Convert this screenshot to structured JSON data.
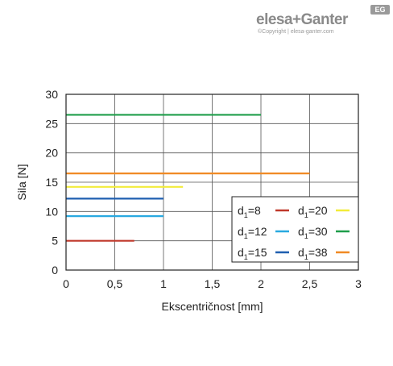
{
  "logo": {
    "brand": "elesa+Ganter",
    "badge": "EG",
    "copyright": "©Copyright | elesa-ganter.com"
  },
  "chart_data": {
    "type": "line",
    "title": "",
    "xlabel": "Ekscentričnost [mm]",
    "ylabel": "Sila [N]",
    "xlim": [
      0,
      3
    ],
    "ylim": [
      0,
      30
    ],
    "xticks": [
      0,
      0.5,
      1,
      1.5,
      2,
      2.5,
      3
    ],
    "xtick_labels": [
      "0",
      "0,5",
      "1",
      "1,5",
      "2",
      "2,5",
      "3"
    ],
    "yticks": [
      0,
      5,
      10,
      15,
      20,
      25,
      30
    ],
    "ytick_labels": [
      "0",
      "5",
      "10",
      "15",
      "20",
      "25",
      "30"
    ],
    "grid": true,
    "legend_position": "bottom-right",
    "series": [
      {
        "name_main": "d",
        "name_sub": "1",
        "name_value": "=8",
        "color": "#c0392b",
        "x": [
          0,
          0.7
        ],
        "y": [
          5,
          5
        ]
      },
      {
        "name_main": "d",
        "name_sub": "1",
        "name_value": "=12",
        "color": "#29a9e0",
        "x": [
          0,
          1
        ],
        "y": [
          9.2,
          9.2
        ]
      },
      {
        "name_main": "d",
        "name_sub": "1",
        "name_value": "=15",
        "color": "#1f5fb0",
        "x": [
          0,
          1
        ],
        "y": [
          12.2,
          12.2
        ]
      },
      {
        "name_main": "d",
        "name_sub": "1",
        "name_value": "=20",
        "color": "#f2ec3a",
        "x": [
          0,
          1.2
        ],
        "y": [
          14.2,
          14.2
        ]
      },
      {
        "name_main": "d",
        "name_sub": "1",
        "name_value": "=30",
        "color": "#1f9e4a",
        "x": [
          0,
          2
        ],
        "y": [
          26.5,
          26.5
        ]
      },
      {
        "name_main": "d",
        "name_sub": "1",
        "name_value": "=38",
        "color": "#f08a24",
        "x": [
          0,
          2.5
        ],
        "y": [
          16.5,
          16.5
        ]
      }
    ],
    "legend_order": [
      0,
      3,
      1,
      4,
      2,
      5
    ]
  }
}
